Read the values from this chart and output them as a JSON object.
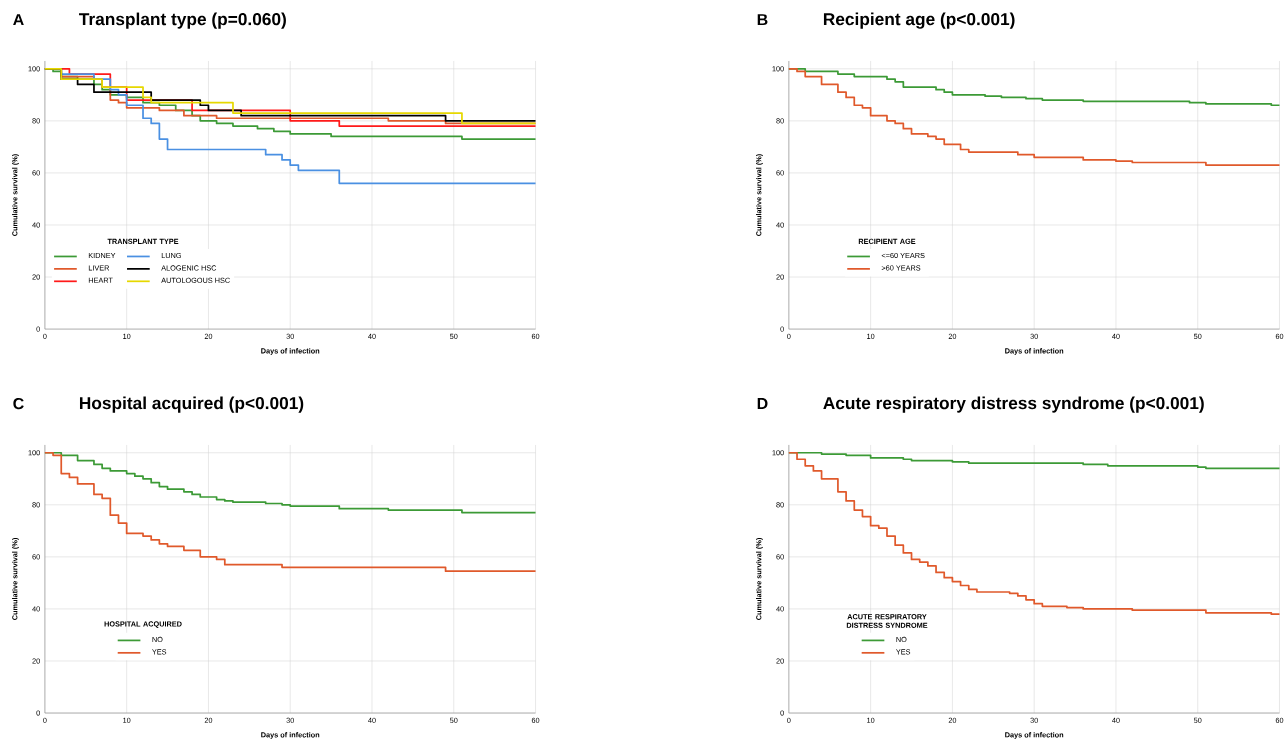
{
  "chart_data": [
    {
      "type": "step",
      "title": "Transplant type (p=0.060)",
      "annotations": [
        "A"
      ],
      "xlabel": "Days of infection",
      "ylabel": "Cumulative survival (%)",
      "legend_title": "TRANSPLANT TYPE",
      "legend": "bottom left",
      "grid": true,
      "xlim": [
        0,
        60
      ],
      "ylim": [
        0,
        103
      ],
      "xticks": [
        0,
        10,
        20,
        30,
        40,
        50,
        60
      ],
      "yticks": [
        0,
        20,
        40,
        60,
        80,
        100
      ],
      "series": [
        {
          "name": "KIDNEY",
          "color": "#3c9a36",
          "x": [
            0,
            1,
            2,
            4,
            6,
            7,
            8,
            10,
            12,
            14,
            16,
            18,
            19,
            21,
            23,
            26,
            28,
            30,
            33,
            35,
            40,
            51,
            60
          ],
          "values": [
            100,
            99,
            97,
            96,
            94,
            92,
            90,
            89,
            87,
            86,
            84,
            82,
            80,
            79,
            78,
            77,
            76,
            75,
            75,
            74,
            74,
            73,
            73
          ]
        },
        {
          "name": "LIVER",
          "color": "#e0592b",
          "x": [
            0,
            2,
            6,
            7,
            8,
            9,
            10,
            14,
            17,
            21,
            42,
            49,
            60
          ],
          "values": [
            100,
            97,
            96,
            93,
            88,
            87,
            85,
            84,
            82,
            81,
            80,
            79,
            79
          ]
        },
        {
          "name": "HEART",
          "color": "#ff1a1a",
          "x": [
            0,
            3,
            8,
            10,
            18,
            30,
            36,
            60
          ],
          "values": [
            100,
            98,
            93,
            88,
            84,
            80,
            78,
            78
          ]
        },
        {
          "name": "LUNG",
          "color": "#4a90e2",
          "x": [
            0,
            2,
            6,
            8,
            9,
            10,
            12,
            13,
            14,
            15,
            27,
            29,
            30,
            31,
            36,
            60
          ],
          "values": [
            100,
            98,
            96,
            92,
            90,
            86,
            81,
            79,
            73,
            69,
            67,
            65,
            63,
            61,
            56,
            56
          ]
        },
        {
          "name": "ALOGENIC HSC",
          "color": "#000000",
          "x": [
            0,
            2,
            4,
            6,
            13,
            19,
            20,
            24,
            49,
            60
          ],
          "values": [
            100,
            96,
            94,
            91,
            88,
            86,
            84,
            82,
            80,
            80
          ]
        },
        {
          "name": "AUTOLOGOUS HSC",
          "color": "#e6d800",
          "x": [
            0,
            2,
            7,
            12,
            13,
            23,
            51,
            60
          ],
          "values": [
            100,
            96,
            93,
            89,
            87,
            83,
            79,
            79
          ]
        }
      ]
    },
    {
      "type": "step",
      "title": "Recipient age (p<0.001)",
      "annotations": [
        "B"
      ],
      "xlabel": "Days of infection",
      "ylabel": "Cumulative survival (%)",
      "legend_title": "RECIPIENT AGE",
      "legend": "bottom left",
      "grid": true,
      "xlim": [
        0,
        60
      ],
      "ylim": [
        0,
        103
      ],
      "xticks": [
        0,
        10,
        20,
        30,
        40,
        50,
        60
      ],
      "yticks": [
        0,
        20,
        40,
        60,
        80,
        100
      ],
      "series": [
        {
          "name": "<=60 YEARS",
          "color": "#3c9a36",
          "x": [
            0,
            2,
            6,
            8,
            12,
            13,
            14,
            18,
            19,
            20,
            22,
            24,
            26,
            29,
            31,
            36,
            49,
            51,
            59,
            60
          ],
          "values": [
            100,
            99,
            98,
            97,
            96,
            95,
            93,
            92,
            91,
            90,
            90,
            89.5,
            89,
            88.5,
            88,
            87.5,
            87,
            86.5,
            86,
            86
          ]
        },
        {
          "name": ">60 YEARS",
          "color": "#e0592b",
          "x": [
            0,
            1,
            2,
            4,
            6,
            7,
            8,
            9,
            10,
            12,
            13,
            14,
            15,
            17,
            18,
            19,
            21,
            22,
            28,
            30,
            36,
            40,
            42,
            51,
            60
          ],
          "values": [
            100,
            99,
            97,
            94,
            91,
            89,
            86,
            85,
            82,
            80,
            79,
            77,
            75,
            74,
            73,
            71,
            69,
            68,
            67,
            66,
            65,
            64.5,
            64,
            63,
            63
          ]
        }
      ]
    },
    {
      "type": "step",
      "title": "Hospital acquired (p<0.001)",
      "annotations": [
        "C"
      ],
      "xlabel": "Days of infection",
      "ylabel": "Cumulative survival (%)",
      "legend_title": "HOSPITAL ACQUIRED",
      "legend": "bottom left",
      "grid": true,
      "xlim": [
        0,
        60
      ],
      "ylim": [
        0,
        103
      ],
      "xticks": [
        0,
        10,
        20,
        30,
        40,
        50,
        60
      ],
      "yticks": [
        0,
        20,
        40,
        60,
        80,
        100
      ],
      "series": [
        {
          "name": "NO",
          "color": "#3c9a36",
          "x": [
            0,
            2,
            4,
            6,
            7,
            8,
            10,
            11,
            12,
            13,
            14,
            15,
            17,
            18,
            19,
            21,
            22,
            23,
            27,
            29,
            30,
            36,
            42,
            51,
            60
          ],
          "values": [
            100,
            99,
            97,
            95.5,
            94,
            93,
            92,
            91,
            90,
            88.5,
            87,
            86,
            85,
            84,
            83,
            82,
            81.5,
            81,
            80.5,
            80,
            79.5,
            78.5,
            78,
            77,
            77
          ]
        },
        {
          "name": "YES",
          "color": "#e0592b",
          "x": [
            0,
            1,
            2,
            3,
            4,
            6,
            7,
            8,
            9,
            10,
            12,
            13,
            14,
            15,
            17,
            19,
            21,
            22,
            29,
            49,
            60
          ],
          "values": [
            100,
            99,
            92,
            90.5,
            88,
            84,
            82.5,
            76,
            73,
            69,
            68,
            66.5,
            65,
            64,
            62.5,
            60,
            59,
            57,
            56,
            54.5,
            54.5
          ]
        }
      ]
    },
    {
      "type": "step",
      "title": "Acute respiratory distress syndrome (p<0.001)",
      "annotations": [
        "D"
      ],
      "xlabel": "Days of infection",
      "ylabel": "Cumulative survival (%)",
      "legend_title": "ACUTE RESPIRATORY DISTRESS SYNDROME",
      "legend": "bottom left",
      "grid": true,
      "xlim": [
        0,
        60
      ],
      "ylim": [
        0,
        103
      ],
      "xticks": [
        0,
        10,
        20,
        30,
        40,
        50,
        60
      ],
      "yticks": [
        0,
        20,
        40,
        60,
        80,
        100
      ],
      "series": [
        {
          "name": "NO",
          "color": "#3c9a36",
          "x": [
            0,
            4,
            7,
            10,
            14,
            15,
            20,
            22,
            36,
            39,
            50,
            51,
            60
          ],
          "values": [
            100,
            99.5,
            99,
            98,
            97.5,
            97,
            96.5,
            96,
            95.5,
            95,
            94.5,
            94,
            94
          ]
        },
        {
          "name": "YES",
          "color": "#e0592b",
          "x": [
            0,
            1,
            2,
            3,
            4,
            6,
            7,
            8,
            9,
            10,
            11,
            12,
            13,
            14,
            15,
            16,
            17,
            18,
            19,
            20,
            21,
            22,
            23,
            27,
            28,
            29,
            30,
            31,
            34,
            36,
            42,
            51,
            59,
            60
          ],
          "values": [
            100,
            97.5,
            95,
            93,
            90,
            85,
            81.5,
            78,
            75.5,
            72,
            71,
            68,
            64.5,
            61.5,
            59,
            58,
            56.5,
            54,
            52,
            50.5,
            49,
            47.5,
            46.5,
            46,
            45,
            43.5,
            42,
            41,
            40.5,
            40,
            39.5,
            38.5,
            38,
            38
          ]
        }
      ]
    }
  ]
}
